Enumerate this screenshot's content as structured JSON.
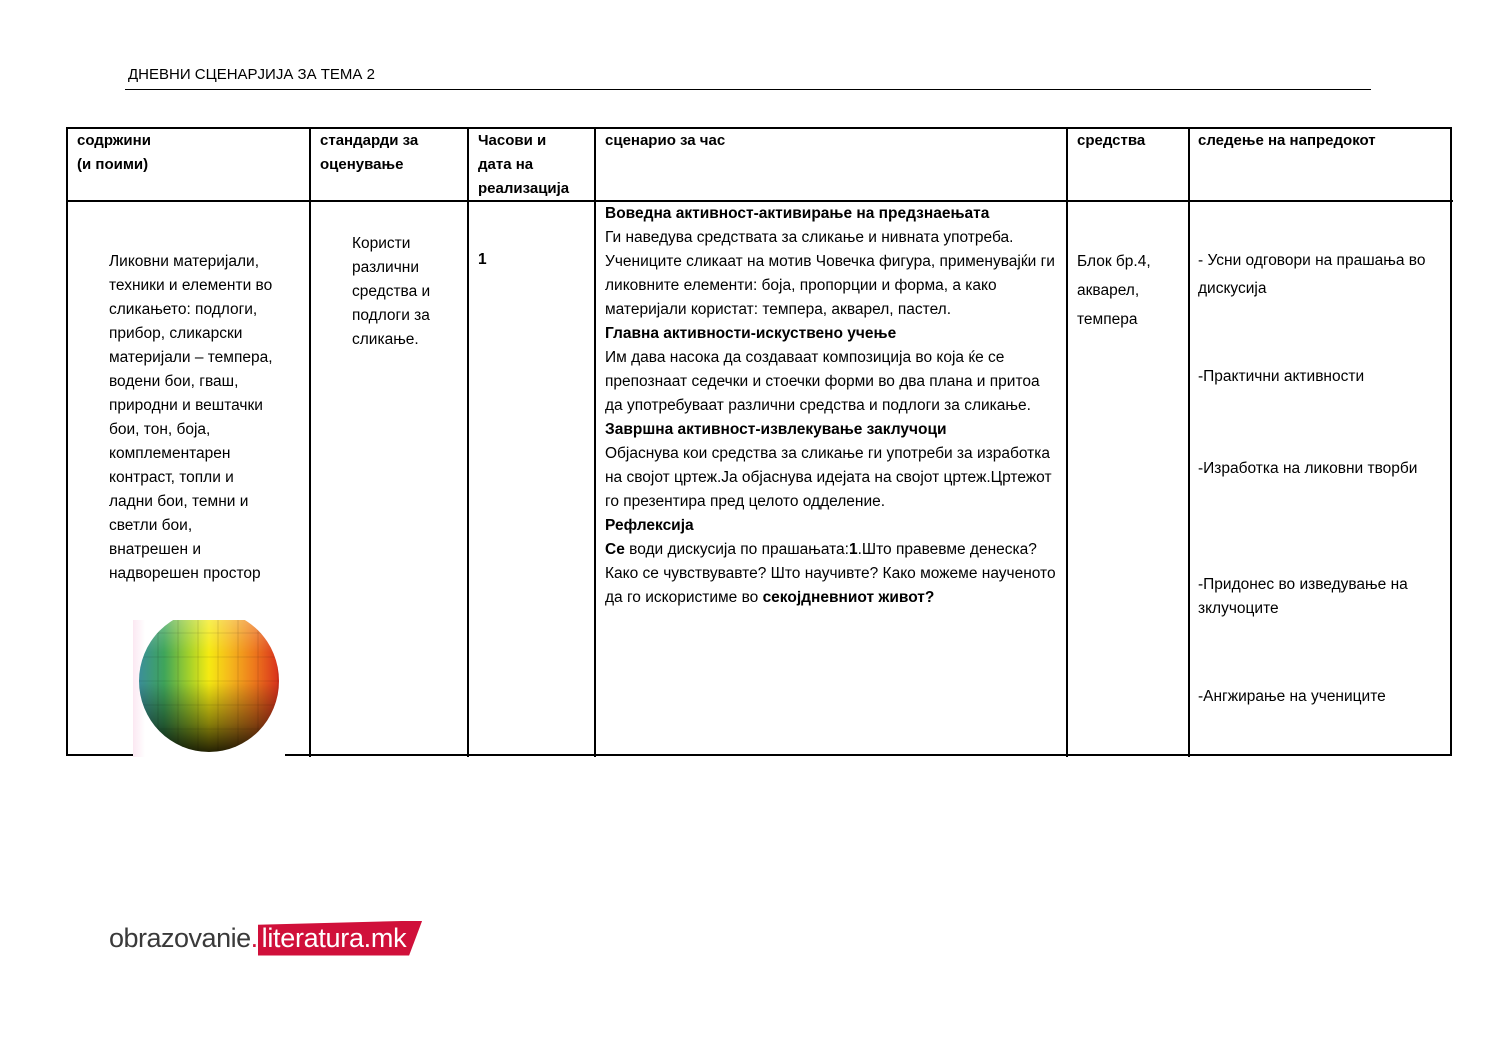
{
  "document": {
    "title": "ДНЕВНИ СЦЕНАРЈИЈА ЗА ТЕМА 2"
  },
  "table": {
    "headers": [
      "содржини\n(и поими)",
      "стандарди за оценување",
      "Часови и дата на реализација",
      "сценарио за час",
      "средства",
      "следење на напредокот"
    ],
    "headers_lines": {
      "c0": [
        "содржини",
        "(и поими)"
      ],
      "c1": [
        "стандарди за",
        "оценување"
      ],
      "c2": [
        "Часови и",
        "дата на",
        "реализација"
      ],
      "c3": [
        "сценарио за час"
      ],
      "c4": [
        "средства"
      ],
      "c5": [
        "следење на напредокот"
      ]
    },
    "content": [
      "Ликовни материјали,",
      "техники и елементи во",
      "сликањето: подлоги,",
      "прибор, сликарски",
      "материјали – темпера,",
      "водени бои, гваш,",
      "природни и вештачки",
      "бои, тон, боја,",
      "комплементарен",
      "контраст, топли и",
      "ладни бои, темни и",
      "светли бои,",
      "внатрешен и",
      "надворешен простор"
    ],
    "standards": [
      "Користи",
      "различни",
      "средства и",
      "подлоги за",
      "сликање."
    ],
    "hours": "1",
    "scenario": {
      "intro_heading": "Воведна активност-активирање на предзнаењата",
      "intro_text": "Ги наведува средствата за сликање и нивната употреба. Учениците сликаат на мотив Човечка фигура, применувајќи ги ликовните елементи: боја, пропорции и форма, а како материјали користат: темпера, акварел, пастел.",
      "main_heading": "Главна активности-искуствено учење",
      "main_text": "Им дава насока да создаваат композиција во која ќе се препознаат седечки и стоечки форми во два плана и притоа да употребуваат различни средства и подлоги за сликање.",
      "final_heading": "Завршна активност-извлекување заклучоци",
      "final_text": "Објаснува кои средства за сликање ги употреби за изработка на својот цртеж.Ја објаснува идејата на својот цртеж.Цртежот го презентира пред целото одделение.",
      "reflection_heading": "Рефлексија",
      "reflection_1": "Се",
      "reflection_2": " води дискусија по прашањата:",
      "reflection_3": "1",
      "reflection_4": ".Што правевме денеска? Како се чувствувавте? Што научивте? Како можеме наученото да го искористиме во ",
      "reflection_5": "секојдневниот живот?"
    },
    "resources": [
      "Блок бр.4,",
      "акварел,",
      "темпера"
    ],
    "monitoring": [
      "- Усни одговори на прашања во дискусија",
      "-Практични активности",
      "-Изработка на ликовни творби",
      "-Придонес во изведување на зклучоците",
      "-Ангжирање на учениците"
    ]
  },
  "image": {
    "icon": "color-sphere"
  },
  "logo": {
    "part1": "obrazovanie",
    "dot": ".",
    "part2": "literatura.mk",
    "accent": "#d0103a"
  }
}
